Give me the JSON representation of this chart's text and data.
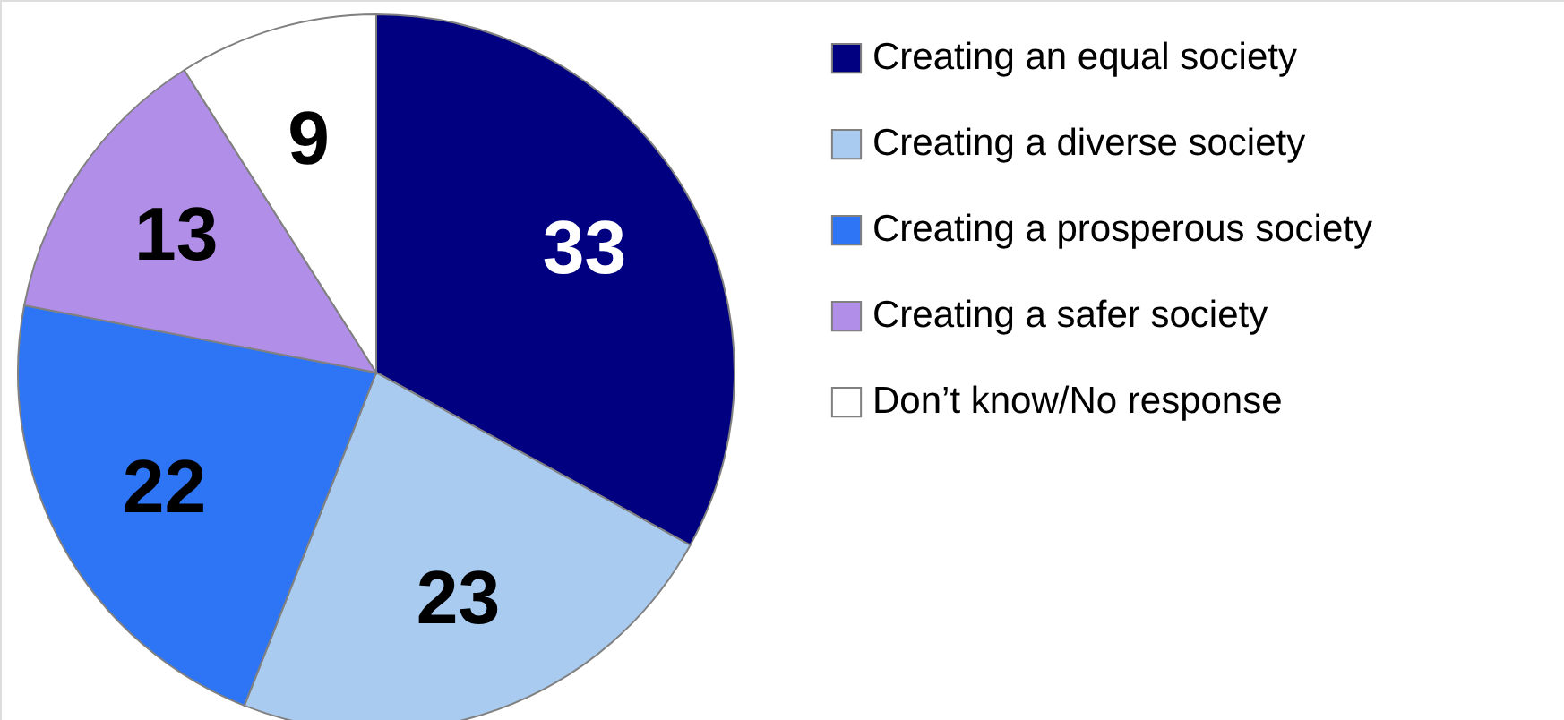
{
  "chart_data": {
    "type": "pie",
    "categories": [
      "Creating an equal society",
      "Creating a diverse society",
      "Creating a prosperous society",
      "Creating a safer society",
      "Don’t know/No response"
    ],
    "values": [
      33,
      23,
      22,
      13,
      9
    ],
    "colors": [
      "#000080",
      "#a9cbef",
      "#2e75f5",
      "#b18ee8",
      "#ffffff"
    ],
    "data_labels": true,
    "legend": "right"
  }
}
